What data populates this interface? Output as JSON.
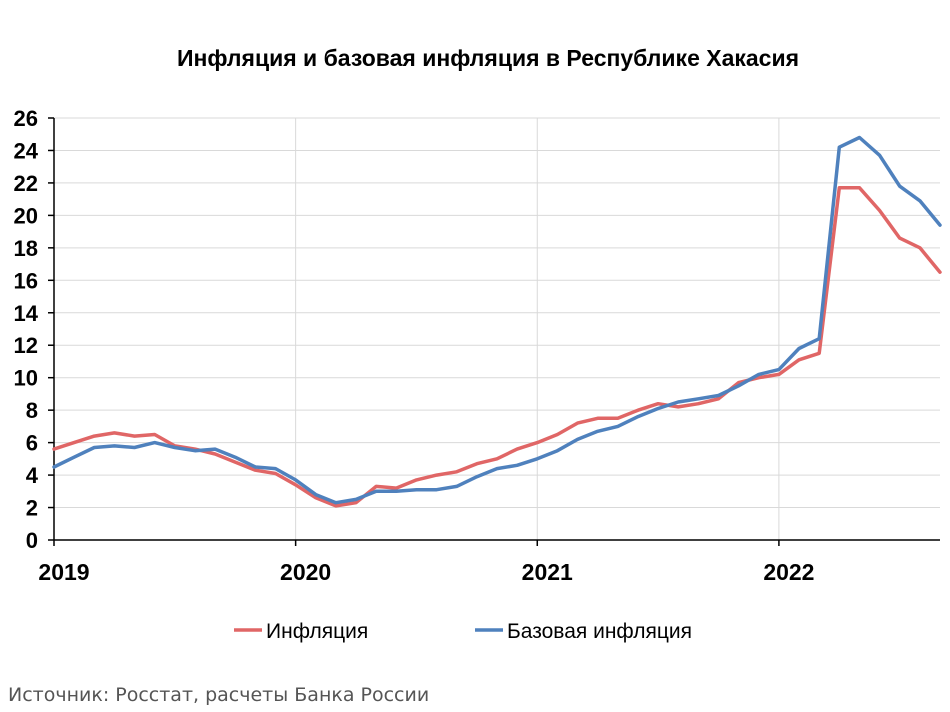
{
  "chart_data": {
    "type": "line",
    "title": "Инфляция и базовая инфляция в Республике Хакасия",
    "xlabel": "",
    "ylabel": "",
    "ylim": [
      0,
      26
    ],
    "yticks": [
      "0",
      "2",
      "4",
      "6",
      "8",
      "10",
      "12",
      "14",
      "16",
      "18",
      "20",
      "22",
      "24",
      "26"
    ],
    "xlim": [
      0,
      44
    ],
    "xticks": [
      {
        "x": 0,
        "label": "2019"
      },
      {
        "x": 12,
        "label": "2020"
      },
      {
        "x": 24,
        "label": "2021"
      },
      {
        "x": 36,
        "label": "2022"
      }
    ],
    "grid": true,
    "legend": "bottom",
    "series": [
      {
        "name": "Инфляция",
        "color": "#e06666",
        "values": [
          5.6,
          6.0,
          6.4,
          6.6,
          6.4,
          6.5,
          5.8,
          5.6,
          5.3,
          4.8,
          4.3,
          4.1,
          3.4,
          2.6,
          2.1,
          2.3,
          3.3,
          3.2,
          3.7,
          4.0,
          4.2,
          4.7,
          5.0,
          5.6,
          6.0,
          6.5,
          7.2,
          7.5,
          7.5,
          8.0,
          8.4,
          8.2,
          8.4,
          8.7,
          9.7,
          10.0,
          10.2,
          11.1,
          11.5,
          21.7,
          21.7,
          20.3,
          18.6,
          18.0,
          16.5
        ]
      },
      {
        "name": "Базовая инфляция",
        "color": "#4f81bd",
        "values": [
          4.5,
          5.1,
          5.7,
          5.8,
          5.7,
          6.0,
          5.7,
          5.5,
          5.6,
          5.1,
          4.5,
          4.4,
          3.7,
          2.8,
          2.3,
          2.5,
          3.0,
          3.0,
          3.1,
          3.1,
          3.3,
          3.9,
          4.4,
          4.6,
          5.0,
          5.5,
          6.2,
          6.7,
          7.0,
          7.6,
          8.1,
          8.5,
          8.7,
          8.9,
          9.5,
          10.2,
          10.5,
          11.8,
          12.4,
          24.2,
          24.8,
          23.7,
          21.8,
          20.9,
          19.4
        ]
      }
    ]
  },
  "source": "Источник: Росстат, расчеты Банка России"
}
